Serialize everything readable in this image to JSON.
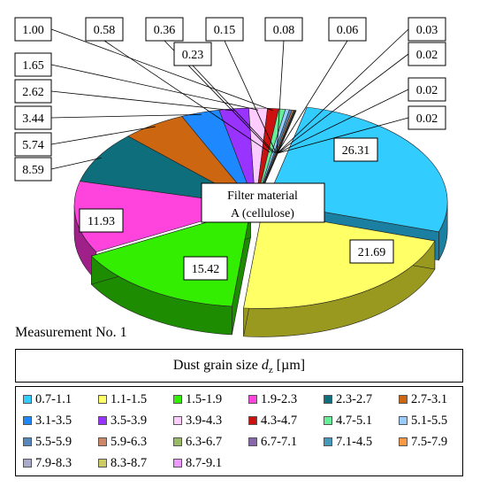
{
  "chart_data": {
    "type": "pie",
    "title": "Filter material\nA (cellulose)",
    "subtitle": "Measurement No. 1",
    "legend_title_prefix": "Dust grain size ",
    "legend_title_var": "d",
    "legend_title_sub": "z",
    "legend_title_unit": " [µm]",
    "legend_placement": "bottom",
    "categories": [
      "0.7-1.1",
      "1.1-1.5",
      "1.5-1.9",
      "1.9-2.3",
      "2.3-2.7",
      "2.7-3.1",
      "3.1-3.5",
      "3.5-3.9",
      "3.9-4.3",
      "4.3-4.7",
      "4.7-5.1",
      "5.1-5.5",
      "5.5-5.9",
      "5.9-6.3",
      "6.3-6.7",
      "6.7-7.1",
      "7.1-4.5",
      "7.5-7.9",
      "7.9-8.3",
      "8.3-8.7",
      "8.7-9.1"
    ],
    "values": [
      26.31,
      21.69,
      15.42,
      11.93,
      8.59,
      5.74,
      3.44,
      2.62,
      1.65,
      1.0,
      0.58,
      0.36,
      0.23,
      0.15,
      0.08,
      0.06,
      0.03,
      0.02,
      0.02,
      0.02,
      0
    ],
    "value_labels": [
      "26.31",
      "21.69",
      "15.42",
      "11.93",
      "8.59",
      "5.74",
      "3.44",
      "2.62",
      "1.65",
      "1.00",
      "0.58",
      "0.36",
      "0.23",
      "0.15",
      "0.08",
      "0.06",
      "0.03",
      "0.02",
      "0.02",
      "0.02",
      ""
    ],
    "colors": [
      "#33ccff",
      "#ffff66",
      "#33ee00",
      "#ff44dd",
      "#0e6e7c",
      "#cc6610",
      "#1e88ff",
      "#9933ff",
      "#ffccff",
      "#cc1111",
      "#66ee99",
      "#99ccff",
      "#5588bb",
      "#cc8866",
      "#99bb66",
      "#8866aa",
      "#4499bb",
      "#ff9944",
      "#aaaacc",
      "#cccc66",
      "#ee99ff"
    ],
    "side_colors": [
      "#1a7fa0",
      "#99991f",
      "#1d8c00",
      "#a0208a",
      "#063e46",
      "#7a3d06",
      "#0f4f99",
      "#5c1c99",
      "#a07aa0",
      "#7a0808",
      "#3a8c5c",
      "#5c7a99",
      "#33506e",
      "#7a503c",
      "#5c703c",
      "#503c66",
      "#285c70",
      "#995a28",
      "#66667a",
      "#7a7a3c",
      "#8c5c99"
    ]
  }
}
